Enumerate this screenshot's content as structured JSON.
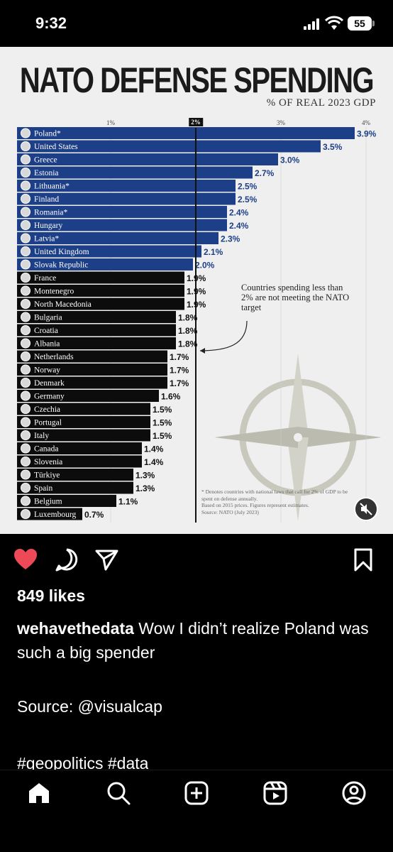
{
  "status_bar": {
    "time": "9:32",
    "battery": "55"
  },
  "infographic": {
    "title": "NATO DEFENSE SPENDING",
    "subtitle": "% OF REAL 2023 GDP",
    "annotation": "Countries spending less than 2% are not meeting the NATO target",
    "footnote_marker": "*",
    "footnote": "Denotes countries with national laws that call for 2% of GDP to be spent on defense annually.",
    "footnote_2": "Based on 2015 prices. Figures represent estimates.",
    "footnote_source": "Source: NATO (July 2023)"
  },
  "chart_data": {
    "type": "bar",
    "orientation": "horizontal",
    "title": "NATO DEFENSE SPENDING",
    "subtitle": "% OF REAL 2023 GDP",
    "ticks": [
      "1%",
      "2%",
      "3%",
      "4%"
    ],
    "xlim": [
      0,
      4
    ],
    "target": 2,
    "categories": [
      "Poland*",
      "United States",
      "Greece",
      "Estonia",
      "Lithuania*",
      "Finland",
      "Romania*",
      "Hungary",
      "Latvia*",
      "United Kingdom",
      "Slovak Republic",
      "France",
      "Montenegro",
      "North Macedonia",
      "Bulgaria",
      "Croatia",
      "Albania",
      "Netherlands",
      "Norway",
      "Denmark",
      "Germany",
      "Czechia",
      "Portugal",
      "Italy",
      "Canada",
      "Slovenia",
      "Türkiye",
      "Spain",
      "Belgium",
      "Luxembourg"
    ],
    "values": [
      3.9,
      3.5,
      3.0,
      2.7,
      2.5,
      2.5,
      2.4,
      2.4,
      2.3,
      2.1,
      2.0,
      1.9,
      1.9,
      1.9,
      1.8,
      1.8,
      1.8,
      1.7,
      1.7,
      1.7,
      1.6,
      1.5,
      1.5,
      1.5,
      1.4,
      1.4,
      1.3,
      1.3,
      1.1,
      0.7
    ],
    "labels": [
      "3.9%",
      "3.5%",
      "3.0%",
      "2.7%",
      "2.5%",
      "2.5%",
      "2.4%",
      "2.4%",
      "2.3%",
      "2.1%",
      "2.0%",
      "1.9%",
      "1.9%",
      "1.9%",
      "1.8%",
      "1.8%",
      "1.8%",
      "1.7%",
      "1.7%",
      "1.7%",
      "1.6%",
      "1.5%",
      "1.5%",
      "1.5%",
      "1.4%",
      "1.4%",
      "1.3%",
      "1.3%",
      "1.1%",
      "0.7%"
    ],
    "colors": {
      "meeting_target": "#1d3f87",
      "below_target": "#0c0c0c"
    }
  },
  "post": {
    "likes": "849 likes",
    "username": "wehavethedata",
    "caption": "Wow I didn’t realize Poland was such a big spender",
    "source": "Source: @visualcap",
    "hashtags": "#geopolitics #data"
  },
  "icons": {
    "like": "heart-icon",
    "comment": "comment-icon",
    "share": "send-icon",
    "save": "bookmark-icon",
    "nav": [
      "home-icon",
      "search-icon",
      "create-icon",
      "reels-icon",
      "profile-icon"
    ]
  },
  "colors": {
    "like": "#ed4956",
    "background": "#000000"
  }
}
